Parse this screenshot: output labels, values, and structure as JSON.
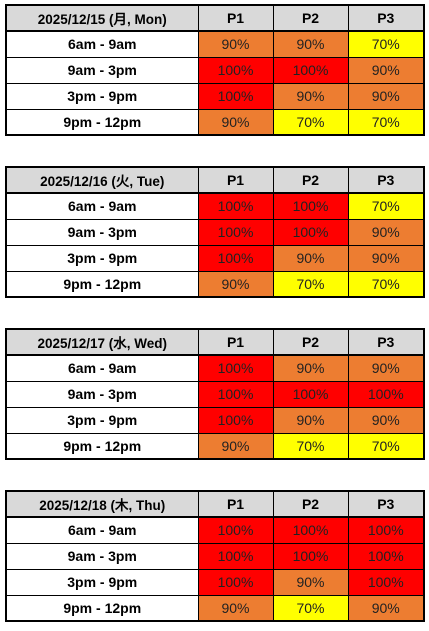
{
  "columns": [
    "P1",
    "P2",
    "P3"
  ],
  "colors": {
    "100%": "#ff0000",
    "90%": "#ed7d31",
    "70%": "#ffff00"
  },
  "days": [
    {
      "date": "2025/12/15 (月, Mon)",
      "rows": [
        {
          "slot": "6am - 9am",
          "values": [
            "90%",
            "90%",
            "70%"
          ]
        },
        {
          "slot": "9am - 3pm",
          "values": [
            "100%",
            "100%",
            "90%"
          ]
        },
        {
          "slot": "3pm - 9pm",
          "values": [
            "100%",
            "90%",
            "90%"
          ]
        },
        {
          "slot": "9pm - 12pm",
          "values": [
            "90%",
            "70%",
            "70%"
          ]
        }
      ]
    },
    {
      "date": "2025/12/16 (火, Tue)",
      "rows": [
        {
          "slot": "6am - 9am",
          "values": [
            "100%",
            "100%",
            "70%"
          ]
        },
        {
          "slot": "9am - 3pm",
          "values": [
            "100%",
            "100%",
            "90%"
          ]
        },
        {
          "slot": "3pm - 9pm",
          "values": [
            "100%",
            "90%",
            "90%"
          ]
        },
        {
          "slot": "9pm - 12pm",
          "values": [
            "90%",
            "70%",
            "70%"
          ]
        }
      ]
    },
    {
      "date": "2025/12/17 (水, Wed)",
      "rows": [
        {
          "slot": "6am - 9am",
          "values": [
            "100%",
            "90%",
            "90%"
          ]
        },
        {
          "slot": "9am - 3pm",
          "values": [
            "100%",
            "100%",
            "100%"
          ]
        },
        {
          "slot": "3pm - 9pm",
          "values": [
            "100%",
            "90%",
            "90%"
          ]
        },
        {
          "slot": "9pm - 12pm",
          "values": [
            "90%",
            "70%",
            "70%"
          ]
        }
      ]
    },
    {
      "date": "2025/12/18 (木, Thu)",
      "rows": [
        {
          "slot": "6am - 9am",
          "values": [
            "100%",
            "100%",
            "100%"
          ]
        },
        {
          "slot": "9am - 3pm",
          "values": [
            "100%",
            "100%",
            "100%"
          ]
        },
        {
          "slot": "3pm - 9pm",
          "values": [
            "100%",
            "90%",
            "100%"
          ]
        },
        {
          "slot": "9pm - 12pm",
          "values": [
            "90%",
            "70%",
            "90%"
          ]
        }
      ]
    }
  ]
}
